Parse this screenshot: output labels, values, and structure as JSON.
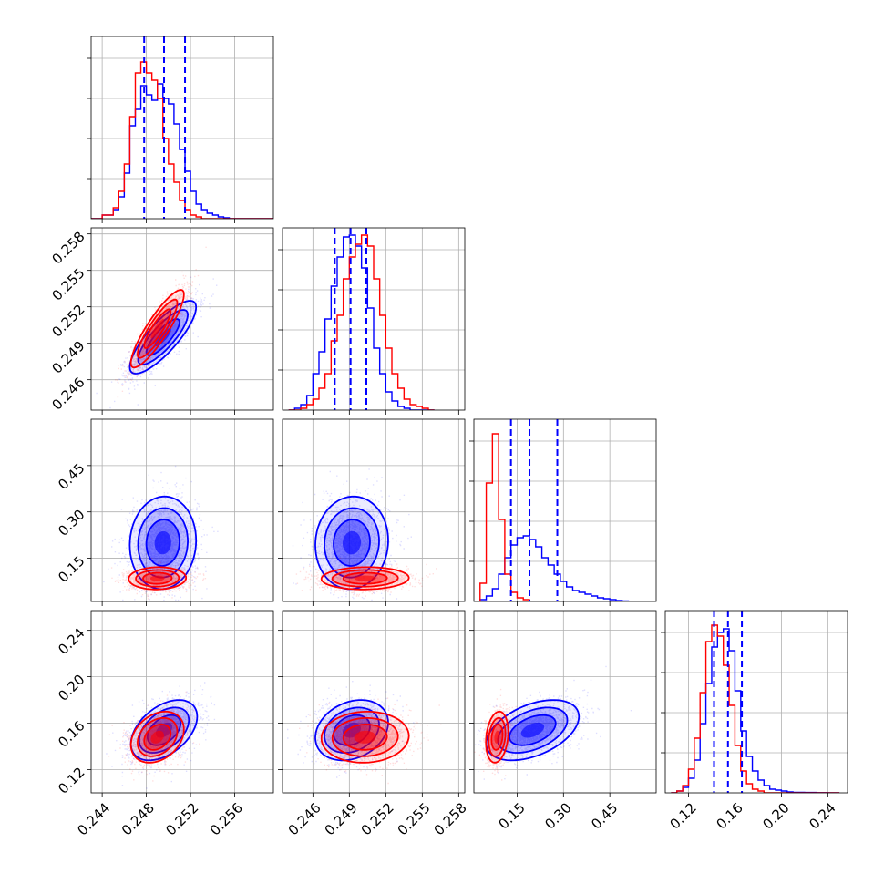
{
  "chart_data": {
    "type": "corner",
    "title": "",
    "grid": true,
    "colors": {
      "sample_a": "#0000ff",
      "sample_b": "#ff0000",
      "quantile_line": "#0000ff"
    },
    "series": [
      {
        "name": "sample_a",
        "color": "#0000ff"
      },
      {
        "name": "sample_b",
        "color": "#ff0000"
      }
    ],
    "parameters": [
      {
        "name": "param_1",
        "label": "",
        "range": [
          0.243,
          0.2595
        ],
        "ticks": [
          0.244,
          0.248,
          0.252,
          0.256
        ],
        "tick_labels": [
          "0.244",
          "0.248",
          "0.252",
          "0.256"
        ],
        "quantiles": [
          0.2478,
          0.2496,
          0.2515
        ],
        "hist": {
          "bin_edges": [
            0.243,
            0.244,
            0.245,
            0.2455,
            0.246,
            0.2465,
            0.247,
            0.2475,
            0.248,
            0.2485,
            0.249,
            0.2495,
            0.25,
            0.2505,
            0.251,
            0.2515,
            0.252,
            0.2525,
            0.253,
            0.2535,
            0.254,
            0.2545,
            0.255,
            0.2555,
            0.256,
            0.2565,
            0.2595
          ],
          "sample_a": [
            0.0,
            0.02,
            0.05,
            0.12,
            0.25,
            0.51,
            0.6,
            0.73,
            0.68,
            0.65,
            0.74,
            0.66,
            0.63,
            0.52,
            0.38,
            0.26,
            0.15,
            0.08,
            0.05,
            0.03,
            0.02,
            0.01,
            0.005,
            0.0,
            0.0,
            0.0
          ],
          "sample_b": [
            0.0,
            0.02,
            0.06,
            0.15,
            0.3,
            0.56,
            0.8,
            0.86,
            0.8,
            0.76,
            0.66,
            0.44,
            0.3,
            0.2,
            0.1,
            0.05,
            0.02,
            0.01,
            0.0,
            0.0,
            0.0,
            0.0,
            0.0,
            0.0,
            0.0,
            0.0
          ]
        }
      },
      {
        "name": "param_2",
        "label": "",
        "range": [
          0.2435,
          0.2585
        ],
        "ticks": [
          0.246,
          0.249,
          0.252,
          0.255,
          0.258
        ],
        "tick_labels": [
          "0.246",
          "0.249",
          "0.252",
          "0.255",
          "0.258"
        ],
        "quantiles": [
          0.2478,
          0.2491,
          0.2504
        ],
        "hist": {
          "bin_edges": [
            0.244,
            0.2445,
            0.245,
            0.2455,
            0.246,
            0.2465,
            0.247,
            0.2475,
            0.248,
            0.2485,
            0.249,
            0.2495,
            0.25,
            0.2505,
            0.251,
            0.2515,
            0.252,
            0.2525,
            0.253,
            0.2535,
            0.254,
            0.2545,
            0.255,
            0.2555,
            0.256
          ],
          "sample_a": [
            0.0,
            0.01,
            0.03,
            0.08,
            0.2,
            0.32,
            0.5,
            0.68,
            0.84,
            0.95,
            0.96,
            0.9,
            0.78,
            0.56,
            0.34,
            0.2,
            0.1,
            0.05,
            0.02,
            0.01,
            0.0,
            0.0,
            0.0,
            0.0
          ],
          "sample_b": [
            0.0,
            0.0,
            0.01,
            0.03,
            0.06,
            0.12,
            0.2,
            0.38,
            0.52,
            0.72,
            0.84,
            0.91,
            0.96,
            0.9,
            0.72,
            0.52,
            0.34,
            0.2,
            0.12,
            0.06,
            0.03,
            0.02,
            0.01,
            0.0
          ]
        }
      },
      {
        "name": "param_3",
        "label": "",
        "range": [
          0.01,
          0.6
        ],
        "ticks": [
          0.15,
          0.3,
          0.45
        ],
        "tick_labels": [
          "0.15",
          "0.30",
          "0.45"
        ],
        "quantiles": [
          0.13,
          0.19,
          0.28
        ],
        "hist": {
          "bin_edges": [
            0.01,
            0.03,
            0.05,
            0.07,
            0.09,
            0.11,
            0.13,
            0.15,
            0.17,
            0.19,
            0.21,
            0.23,
            0.25,
            0.27,
            0.29,
            0.31,
            0.33,
            0.35,
            0.37,
            0.39,
            0.41,
            0.43,
            0.45,
            0.47,
            0.49,
            0.51,
            0.55,
            0.6
          ],
          "sample_a": [
            0.0,
            0.01,
            0.03,
            0.07,
            0.15,
            0.24,
            0.31,
            0.35,
            0.36,
            0.34,
            0.3,
            0.24,
            0.2,
            0.15,
            0.11,
            0.08,
            0.06,
            0.05,
            0.04,
            0.03,
            0.02,
            0.015,
            0.01,
            0.005,
            0.003,
            0.001,
            0.0
          ],
          "sample_b": [
            0.0,
            0.1,
            0.65,
            0.92,
            0.45,
            0.15,
            0.05,
            0.02,
            0.01,
            0.0,
            0.0,
            0.0,
            0.0,
            0.0,
            0.0,
            0.0,
            0.0,
            0.0,
            0.0,
            0.0,
            0.0,
            0.0,
            0.0,
            0.0,
            0.0,
            0.0,
            0.0
          ]
        }
      },
      {
        "name": "param_4",
        "label": "",
        "range": [
          0.1,
          0.257
        ],
        "ticks": [
          0.12,
          0.16,
          0.2,
          0.24
        ],
        "tick_labels": [
          "0.12",
          "0.16",
          "0.20",
          "0.24"
        ],
        "quantiles": [
          0.142,
          0.154,
          0.166
        ],
        "hist": {
          "bin_edges": [
            0.105,
            0.11,
            0.115,
            0.12,
            0.125,
            0.13,
            0.135,
            0.14,
            0.145,
            0.15,
            0.155,
            0.16,
            0.165,
            0.17,
            0.175,
            0.18,
            0.185,
            0.19,
            0.195,
            0.2,
            0.205,
            0.21,
            0.22,
            0.23,
            0.24,
            0.25
          ],
          "sample_a": [
            0.0,
            0.01,
            0.03,
            0.08,
            0.18,
            0.38,
            0.6,
            0.8,
            0.88,
            0.9,
            0.78,
            0.56,
            0.34,
            0.2,
            0.12,
            0.07,
            0.04,
            0.02,
            0.015,
            0.01,
            0.005,
            0.003,
            0.002,
            0.001,
            0.0
          ],
          "sample_b": [
            0.0,
            0.01,
            0.04,
            0.13,
            0.3,
            0.55,
            0.83,
            0.92,
            0.86,
            0.7,
            0.48,
            0.26,
            0.12,
            0.05,
            0.02,
            0.01,
            0.0,
            0.0,
            0.0,
            0.0,
            0.0,
            0.0,
            0.0,
            0.0,
            0.0
          ]
        }
      }
    ],
    "pairs": [
      {
        "x": 0,
        "y": 1,
        "sample_a": {
          "mean": [
            0.2495,
            0.2495
          ],
          "sd": [
            0.0015,
            0.0015
          ],
          "rho": 0.82
        },
        "sample_b": {
          "mean": [
            0.249,
            0.2502
          ],
          "sd": [
            0.0012,
            0.0016
          ],
          "rho": 0.88
        }
      },
      {
        "x": 0,
        "y": 2,
        "sample_a": {
          "mean": [
            0.2495,
            0.2
          ],
          "sd": [
            0.0015,
            0.075
          ],
          "rho": 0.05
        },
        "sample_b": {
          "mean": [
            0.249,
            0.085
          ],
          "sd": [
            0.0013,
            0.018
          ],
          "rho": 0.05
        }
      },
      {
        "x": 1,
        "y": 2,
        "sample_a": {
          "mean": [
            0.2492,
            0.2
          ],
          "sd": [
            0.0015,
            0.075
          ],
          "rho": 0.05
        },
        "sample_b": {
          "mean": [
            0.2503,
            0.085
          ],
          "sd": [
            0.0018,
            0.018
          ],
          "rho": 0.05
        }
      },
      {
        "x": 0,
        "y": 3,
        "sample_a": {
          "mean": [
            0.2496,
            0.154
          ],
          "sd": [
            0.0015,
            0.013
          ],
          "rho": 0.45
        },
        "sample_b": {
          "mean": [
            0.249,
            0.148
          ],
          "sd": [
            0.0012,
            0.011
          ],
          "rho": 0.3
        }
      },
      {
        "x": 1,
        "y": 3,
        "sample_a": {
          "mean": [
            0.2492,
            0.154
          ],
          "sd": [
            0.0015,
            0.013
          ],
          "rho": 0.25
        },
        "sample_b": {
          "mean": [
            0.2503,
            0.148
          ],
          "sd": [
            0.0018,
            0.011
          ],
          "rho": 0.05
        }
      },
      {
        "x": 2,
        "y": 3,
        "sample_a": {
          "mean": [
            0.2,
            0.154
          ],
          "sd": [
            0.075,
            0.013
          ],
          "rho": 0.45
        },
        "sample_b": {
          "mean": [
            0.085,
            0.148
          ],
          "sd": [
            0.018,
            0.011
          ],
          "rho": 0.2
        }
      }
    ]
  }
}
